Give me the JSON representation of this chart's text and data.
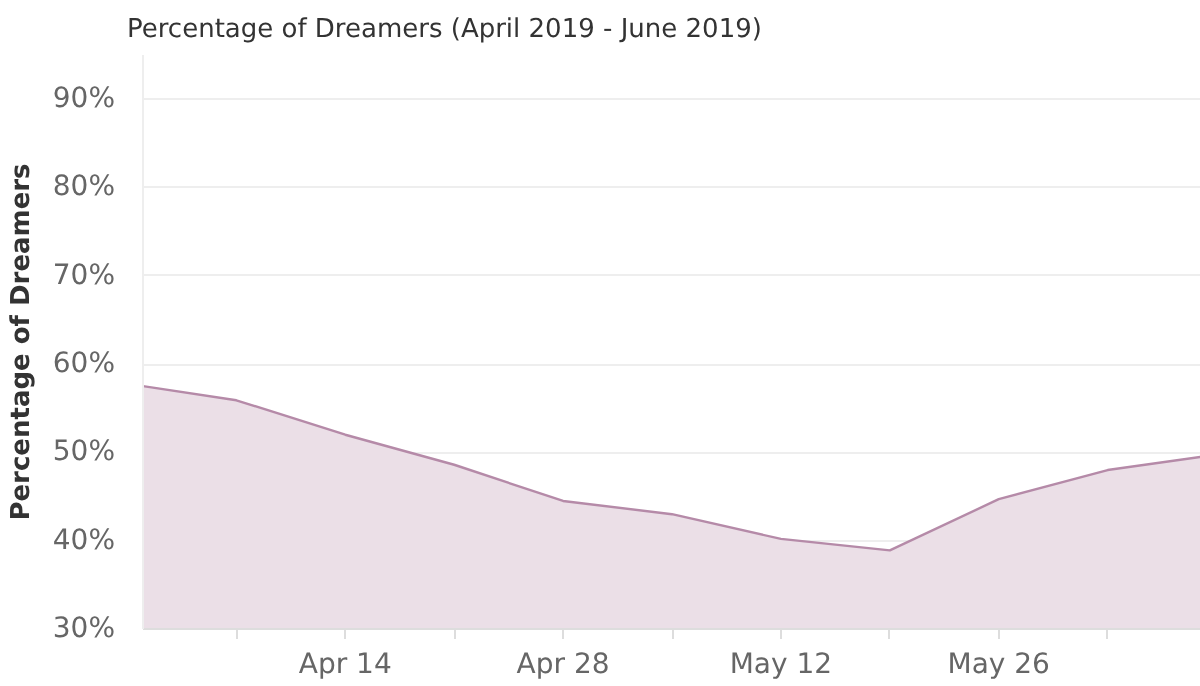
{
  "chart_data": {
    "type": "area",
    "title": "Percentage of Dreamers (April 2019 - June 2019)",
    "ylabel": "Percentage of Dreamers",
    "x": [
      "2019-04-01",
      "2019-04-07",
      "2019-04-14",
      "2019-04-21",
      "2019-04-28",
      "2019-05-05",
      "2019-05-12",
      "2019-05-19",
      "2019-05-26",
      "2019-06-02",
      "2019-06-08"
    ],
    "series": [
      {
        "color": "#b58aa8",
        "values": [
          57.5,
          55.9,
          52,
          48.6,
          44.5,
          43,
          40.2,
          38.9,
          44.7,
          48,
          49.5
        ]
      }
    ],
    "xlim": [
      "2019-04-01",
      "2019-06-08"
    ],
    "xticks": [
      {
        "value": "2019-04-07",
        "label": null
      },
      {
        "value": "2019-04-14",
        "label": "Apr 14"
      },
      {
        "value": "2019-04-21",
        "label": null
      },
      {
        "value": "2019-04-28",
        "label": "Apr 28"
      },
      {
        "value": "2019-05-05",
        "label": null
      },
      {
        "value": "2019-05-12",
        "label": "May 12"
      },
      {
        "value": "2019-05-19",
        "label": null
      },
      {
        "value": "2019-05-26",
        "label": "May 26"
      },
      {
        "value": "2019-06-02",
        "label": null
      }
    ],
    "ylim": [
      30,
      95
    ],
    "yticks": [
      {
        "value": 30,
        "label": "30%"
      },
      {
        "value": 40,
        "label": "40%"
      },
      {
        "value": 50,
        "label": "50%"
      },
      {
        "value": 60,
        "label": "60%"
      },
      {
        "value": 70,
        "label": "70%"
      },
      {
        "value": 80,
        "label": "80%"
      },
      {
        "value": 90,
        "label": "90%"
      }
    ],
    "grid": "y"
  }
}
